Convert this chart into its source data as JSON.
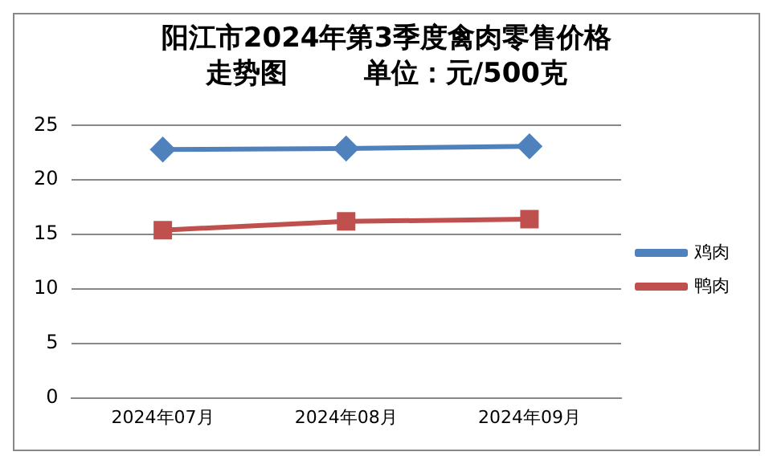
{
  "chart_data": {
    "type": "line",
    "title": "阳江市2024年第3季度禽肉零售价格走势图        单位：元/500克",
    "categories": [
      "2024年07月",
      "2024年08月",
      "2024年09月"
    ],
    "series": [
      {
        "name": "鸡肉",
        "color": "#4f81bd",
        "marker": "diamond",
        "values": [
          22.8,
          22.9,
          23.1
        ]
      },
      {
        "name": "鸭肉",
        "color": "#c0504d",
        "marker": "square",
        "values": [
          15.4,
          16.2,
          16.4
        ]
      }
    ],
    "ylim": [
      0,
      25
    ],
    "yticks": [
      0,
      5,
      10,
      15,
      20,
      25
    ],
    "grid": "y",
    "legend": "right"
  }
}
